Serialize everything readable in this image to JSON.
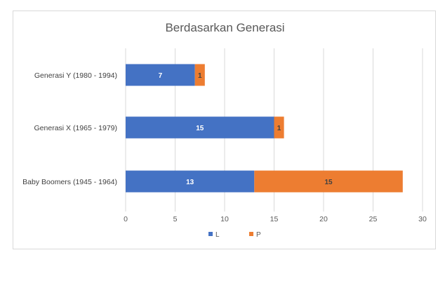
{
  "chart_data": {
    "type": "bar",
    "orientation": "horizontal",
    "stacked": true,
    "title": "Berdasarkan Generasi",
    "categories": [
      "Generasi Y (1980 - 1994)",
      "Generasi X (1965 - 1979)",
      "Baby Boomers (1945 - 1964)"
    ],
    "series": [
      {
        "name": "L",
        "color": "#4472c4",
        "values": [
          7,
          15,
          13
        ]
      },
      {
        "name": "P",
        "color": "#ed7d31",
        "values": [
          1,
          1,
          15
        ]
      }
    ],
    "xticks": [
      "0",
      "5",
      "10",
      "15",
      "20",
      "25",
      "30"
    ],
    "xlim": [
      0,
      30
    ],
    "grid": "vertical",
    "legend": "bottom",
    "xlabel": "",
    "ylabel": ""
  }
}
